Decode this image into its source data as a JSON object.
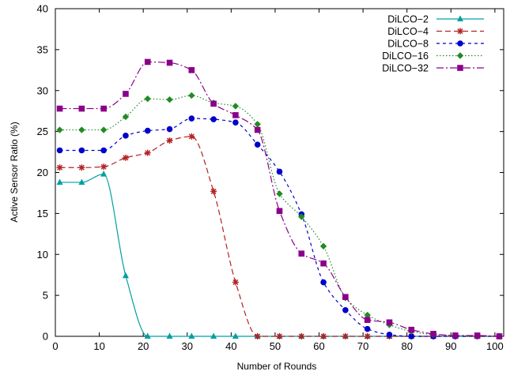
{
  "chart_data": {
    "type": "line",
    "title": "",
    "xlabel": "Number of Rounds",
    "ylabel": "Active Sensor Ratio (%)",
    "xlim": [
      0,
      102
    ],
    "ylim": [
      0,
      40
    ],
    "xticks": [
      0,
      10,
      20,
      30,
      40,
      50,
      60,
      70,
      80,
      90,
      100
    ],
    "yticks": [
      0,
      5,
      10,
      15,
      20,
      25,
      30,
      35,
      40
    ],
    "grid": false,
    "legend_position": "top-right",
    "series": [
      {
        "name": "DiLCO−2",
        "color": "#00a0a0",
        "line_style": "solid",
        "marker": "triangle",
        "x": [
          1,
          6,
          11,
          16,
          21,
          26,
          31,
          36,
          41,
          46,
          51,
          56,
          61,
          66,
          71,
          76,
          81,
          86,
          91,
          96,
          101
        ],
        "y": [
          18.8,
          18.8,
          19.8,
          7.4,
          0,
          0,
          0,
          0,
          0,
          0,
          0,
          0,
          0,
          0,
          0,
          0,
          0,
          0,
          0,
          0,
          0
        ]
      },
      {
        "name": "DiLCO−4",
        "color": "#b22222",
        "line_style": "dashed",
        "marker": "star",
        "x": [
          1,
          6,
          11,
          16,
          21,
          26,
          31,
          36,
          41,
          46,
          51,
          56,
          61,
          66,
          71,
          76,
          81,
          86,
          91,
          96,
          101
        ],
        "y": [
          20.6,
          20.6,
          20.7,
          21.8,
          22.4,
          23.9,
          24.4,
          17.7,
          6.6,
          0,
          0,
          0,
          0,
          0,
          0,
          0,
          0,
          0,
          0,
          0,
          0
        ]
      },
      {
        "name": "DiLCO−8",
        "color": "#0000cd",
        "line_style": "short-dashed",
        "marker": "circle",
        "x": [
          1,
          6,
          11,
          16,
          21,
          26,
          31,
          36,
          41,
          46,
          51,
          56,
          61,
          66,
          71,
          76,
          81,
          86,
          91,
          96,
          101
        ],
        "y": [
          22.7,
          22.7,
          22.7,
          24.5,
          25.1,
          25.3,
          26.6,
          26.5,
          26.1,
          23.4,
          20.1,
          14.9,
          6.6,
          3.2,
          0.9,
          0.2,
          0,
          0,
          0,
          0,
          0
        ]
      },
      {
        "name": "DiLCO−16",
        "color": "#228b22",
        "line_style": "dotted",
        "marker": "diamond",
        "x": [
          1,
          6,
          11,
          16,
          21,
          26,
          31,
          36,
          41,
          46,
          51,
          56,
          61,
          66,
          71,
          76,
          81,
          86,
          91,
          96,
          101
        ],
        "y": [
          25.2,
          25.2,
          25.2,
          26.8,
          29.0,
          28.9,
          29.4,
          28.5,
          28.1,
          25.9,
          17.4,
          14.6,
          11.0,
          4.7,
          2.6,
          1.4,
          0.6,
          0.2,
          0.1,
          0,
          0
        ]
      },
      {
        "name": "DiLCO−32",
        "color": "#8b008b",
        "line_style": "dash-dot",
        "marker": "square",
        "x": [
          1,
          6,
          11,
          16,
          21,
          26,
          31,
          36,
          41,
          46,
          51,
          56,
          61,
          66,
          71,
          76,
          81,
          86,
          91,
          96,
          101
        ],
        "y": [
          27.8,
          27.8,
          27.8,
          29.6,
          33.5,
          33.4,
          32.5,
          28.4,
          27.0,
          25.2,
          15.3,
          10.1,
          8.9,
          4.8,
          2.0,
          1.7,
          0.8,
          0.3,
          0.1,
          0.1,
          0
        ]
      }
    ]
  }
}
